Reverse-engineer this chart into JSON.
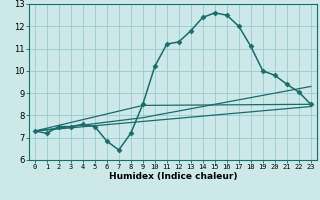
{
  "xlabel": "Humidex (Indice chaleur)",
  "background_color": "#cce8e8",
  "line_color": "#1a6b6b",
  "grid_color": "#99cccc",
  "xlim": [
    -0.5,
    23.5
  ],
  "ylim": [
    6,
    13
  ],
  "xticks": [
    0,
    1,
    2,
    3,
    4,
    5,
    6,
    7,
    8,
    9,
    10,
    11,
    12,
    13,
    14,
    15,
    16,
    17,
    18,
    19,
    20,
    21,
    22,
    23
  ],
  "yticks": [
    6,
    7,
    8,
    9,
    10,
    11,
    12,
    13
  ],
  "line1_x": [
    0,
    1,
    2,
    3,
    4,
    5,
    6,
    7,
    8,
    9,
    10,
    11,
    12,
    13,
    14,
    15,
    16,
    17,
    18,
    19,
    20,
    21,
    22,
    23
  ],
  "line1_y": [
    7.3,
    7.2,
    7.5,
    7.5,
    7.6,
    7.5,
    6.85,
    6.45,
    7.2,
    8.5,
    10.2,
    11.2,
    11.3,
    11.8,
    12.4,
    12.6,
    12.5,
    12.0,
    11.1,
    10.0,
    9.8,
    9.4,
    9.05,
    8.5
  ],
  "line2_x": [
    0,
    23
  ],
  "line2_y": [
    7.3,
    8.4
  ],
  "line3_x": [
    0,
    9,
    23
  ],
  "line3_y": [
    7.3,
    7.9,
    9.3
  ],
  "line4_x": [
    0,
    9,
    23
  ],
  "line4_y": [
    7.3,
    8.45,
    8.5
  ]
}
